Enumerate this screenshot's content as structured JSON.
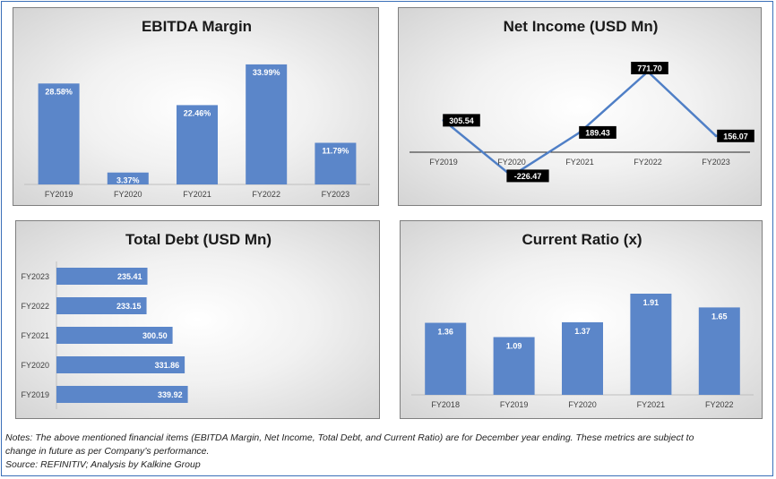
{
  "chart_data": [
    {
      "type": "bar",
      "title": "EBITDA Margin",
      "categories": [
        "FY2019",
        "FY2020",
        "FY2021",
        "FY2022",
        "FY2023"
      ],
      "values": [
        28.58,
        3.37,
        22.46,
        33.99,
        11.79
      ],
      "value_labels": [
        "28.58%",
        "3.37%",
        "22.46%",
        "33.99%",
        "11.79%"
      ],
      "ylim": [
        0,
        36
      ],
      "grid": false,
      "bar_color": "#5b86c9"
    },
    {
      "type": "line",
      "title": "Net Income (USD Mn)",
      "categories": [
        "FY2019",
        "FY2020",
        "FY2021",
        "FY2022",
        "FY2023"
      ],
      "values": [
        305.54,
        -226.47,
        189.43,
        771.7,
        156.07
      ],
      "value_labels": [
        "305.54",
        "-226.47",
        "189.43",
        "771.70",
        "156.07"
      ],
      "ylim": [
        -300,
        850
      ],
      "grid": false,
      "line_color": "#4f7fc6"
    },
    {
      "type": "bar",
      "orientation": "horizontal",
      "title": "Total Debt (USD Mn)",
      "categories": [
        "FY2023",
        "FY2022",
        "FY2021",
        "FY2020",
        "FY2019"
      ],
      "values": [
        235.41,
        233.15,
        300.5,
        331.86,
        339.92
      ],
      "value_labels": [
        "235.41",
        "233.15",
        "300.50",
        "331.86",
        "339.92"
      ],
      "xlim": [
        0,
        800
      ],
      "grid": false,
      "bar_color": "#5b86c9"
    },
    {
      "type": "bar",
      "title": "Current Ratio (x)",
      "categories": [
        "FY2018",
        "FY2019",
        "FY2020",
        "FY2021",
        "FY2022"
      ],
      "values": [
        1.36,
        1.09,
        1.37,
        1.91,
        1.65
      ],
      "value_labels": [
        "1.36",
        "1.09",
        "1.37",
        "1.91",
        "1.65"
      ],
      "ylim": [
        0,
        2.0
      ],
      "grid": false,
      "bar_color": "#5b86c9"
    }
  ],
  "notes": {
    "line1": "Notes: The above mentioned financial items (EBITDA Margin, Net Income, Total Debt, and Current Ratio) are for December year ending. These metrics are subject to",
    "line2": "change in future as per Company’s performance.",
    "line3": "Source: REFINITIV; Analysis by Kalkine Group"
  }
}
